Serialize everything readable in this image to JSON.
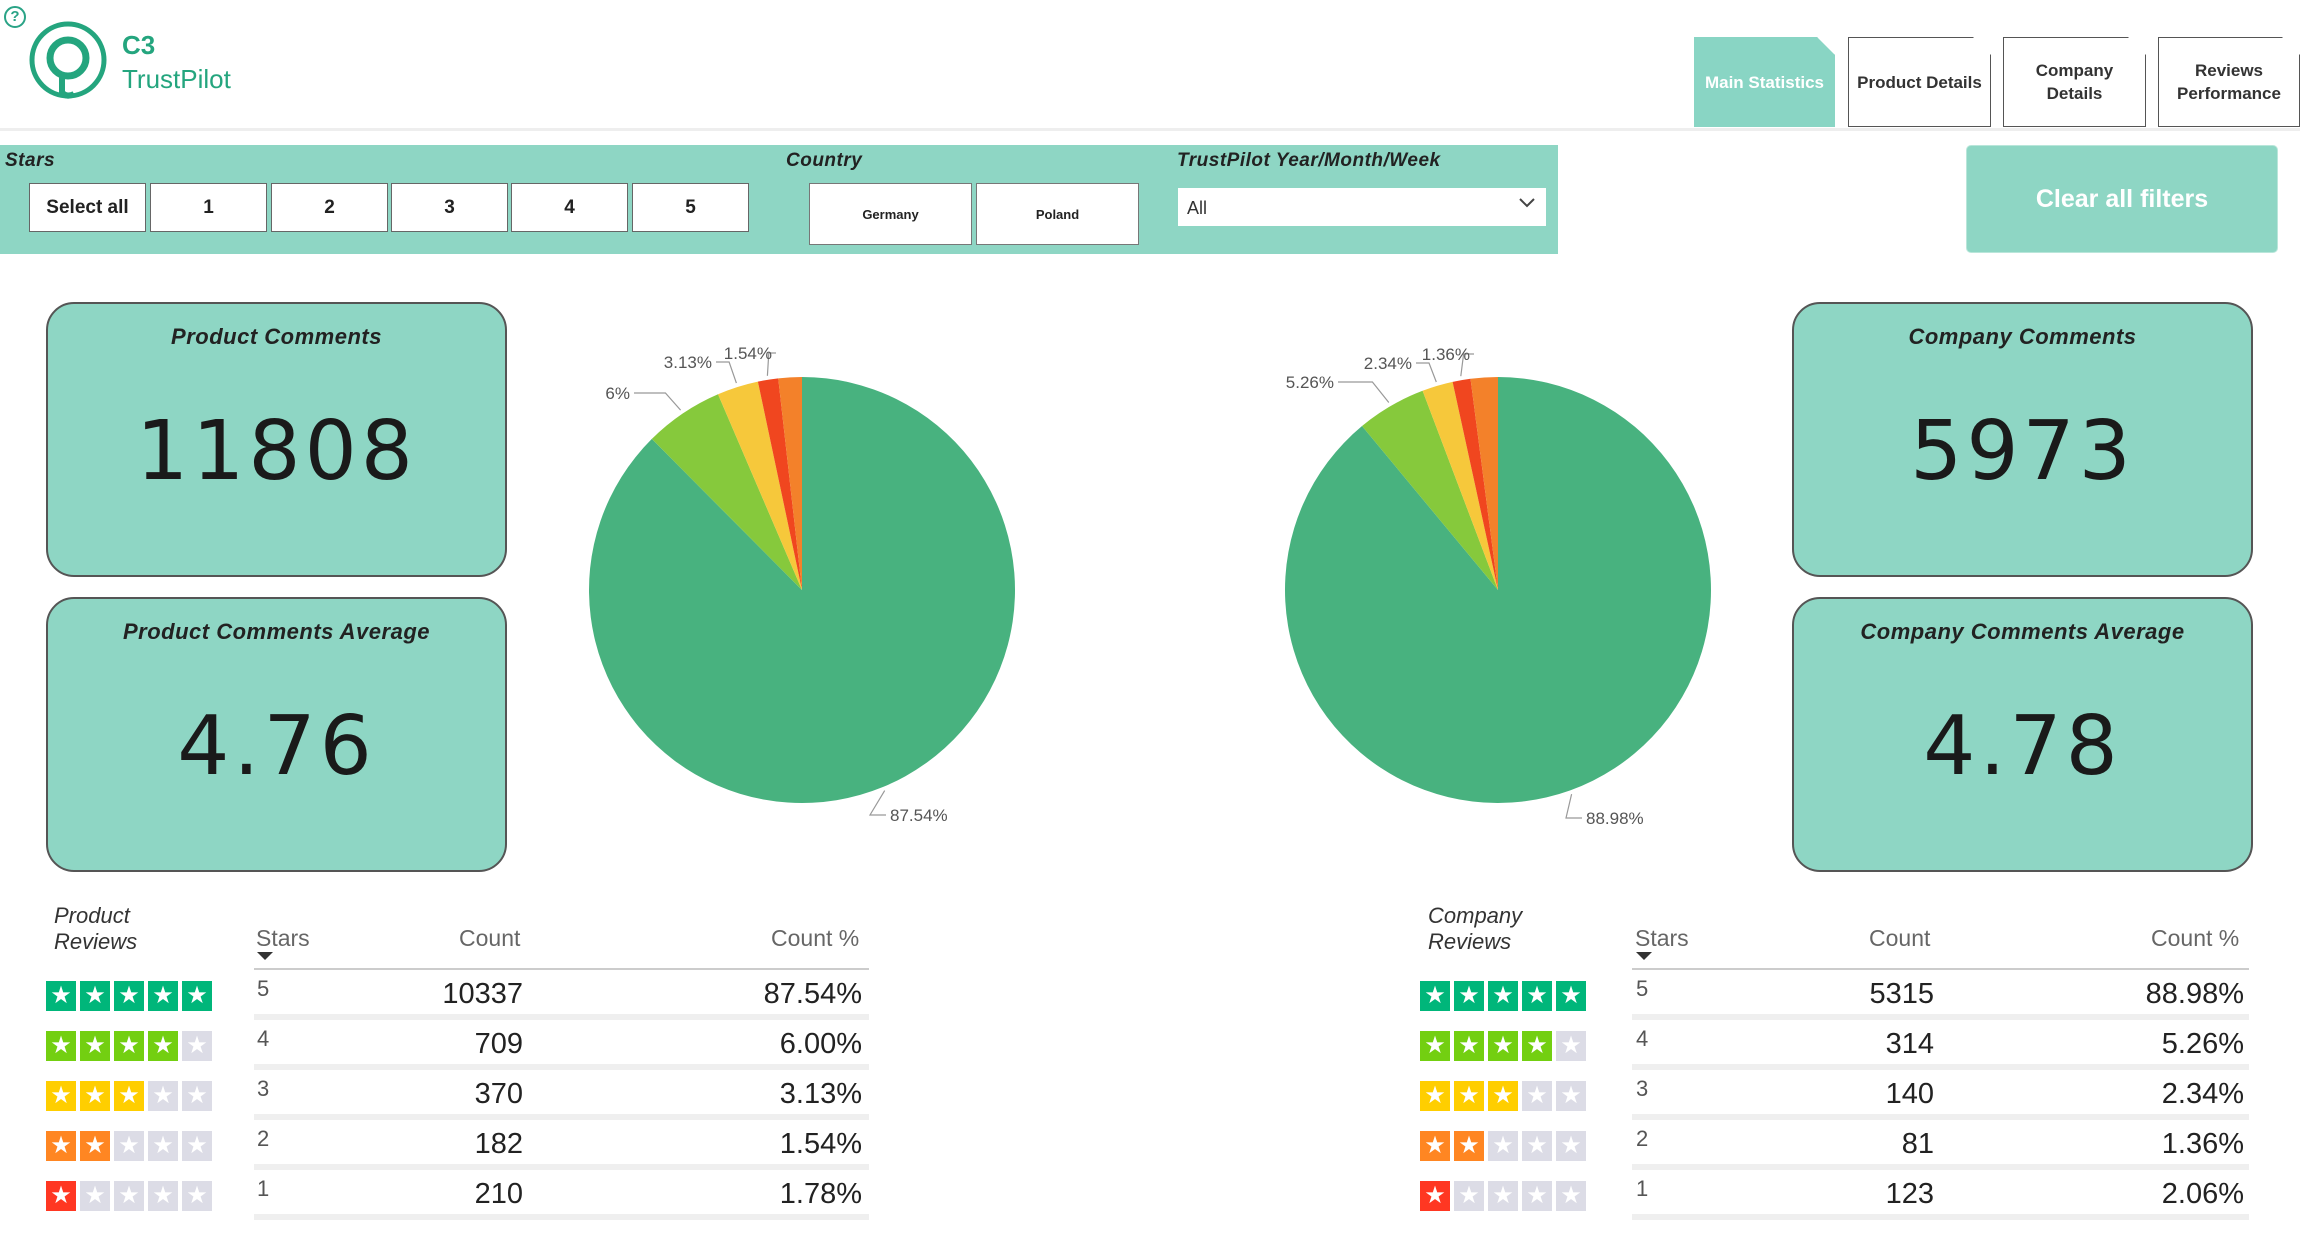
{
  "app": {
    "title": "C3",
    "subtitle": "TrustPilot",
    "help_icon": "question-circle-icon",
    "accent_color": "#24a57e"
  },
  "nav_tabs": [
    {
      "label": "Main Statistics",
      "active": true
    },
    {
      "label": "Product Details",
      "active": false
    },
    {
      "label": "Company\nDetails",
      "active": false
    },
    {
      "label": "Reviews\nPerformance",
      "active": false
    }
  ],
  "filters": {
    "stars_label": "Stars",
    "stars_options": [
      "Select all",
      "1",
      "2",
      "3",
      "4",
      "5"
    ],
    "country_label": "Country",
    "country_options": [
      "Germany",
      "Poland"
    ],
    "period_label": "TrustPilot Year/Month/Week",
    "period_value": "All",
    "clear_label": "Clear all filters"
  },
  "kpis": {
    "product_comments_label": "Product Comments",
    "product_comments_value": "11808",
    "product_avg_label": "Product Comments Average",
    "product_avg_value": "4.76",
    "company_comments_label": "Company Comments",
    "company_comments_value": "5973",
    "company_avg_label": "Company Comments Average",
    "company_avg_value": "4.78"
  },
  "colors": {
    "five": "#48b27f",
    "four": "#86c93c",
    "three": "#f6c83b",
    "two": "#f0461f",
    "one": "#f3812a",
    "tp5": "#00b67a",
    "tp4": "#73cf11",
    "tp3": "#ffce00",
    "tp2": "#ff8622",
    "tp1": "#ff3722",
    "empty": "#dcdce6"
  },
  "chart_data": [
    {
      "type": "pie",
      "name": "product",
      "labels": [
        "87.54%",
        "6%",
        "3.13%",
        "1.54%",
        "1.78%"
      ],
      "values": [
        87.54,
        6.0,
        3.13,
        1.54,
        1.78
      ],
      "shown_labels": [
        "87.54%",
        "6%",
        "3.13%",
        "1.54%"
      ]
    },
    {
      "type": "pie",
      "name": "company",
      "labels": [
        "88.98%",
        "5.26%",
        "2.34%",
        "1.36%",
        "2.06%"
      ],
      "values": [
        88.98,
        5.26,
        2.34,
        1.36,
        2.06
      ],
      "shown_labels": [
        "88.98%",
        "5.26%",
        "2.34%",
        "1.36%"
      ]
    }
  ],
  "product_table": {
    "title": "Product\nReviews",
    "headers": [
      "Stars",
      "Count",
      "Count %"
    ],
    "rows": [
      {
        "stars": "5",
        "count": "10337",
        "pct": "87.54%"
      },
      {
        "stars": "4",
        "count": "709",
        "pct": "6.00%"
      },
      {
        "stars": "3",
        "count": "370",
        "pct": "3.13%"
      },
      {
        "stars": "2",
        "count": "182",
        "pct": "1.54%"
      },
      {
        "stars": "1",
        "count": "210",
        "pct": "1.78%"
      }
    ]
  },
  "company_table": {
    "title": "Company\nReviews",
    "headers": [
      "Stars",
      "Count",
      "Count %"
    ],
    "rows": [
      {
        "stars": "5",
        "count": "5315",
        "pct": "88.98%"
      },
      {
        "stars": "4",
        "count": "314",
        "pct": "5.26%"
      },
      {
        "stars": "3",
        "count": "140",
        "pct": "2.34%"
      },
      {
        "stars": "2",
        "count": "81",
        "pct": "1.36%"
      },
      {
        "stars": "1",
        "count": "123",
        "pct": "2.06%"
      }
    ]
  }
}
